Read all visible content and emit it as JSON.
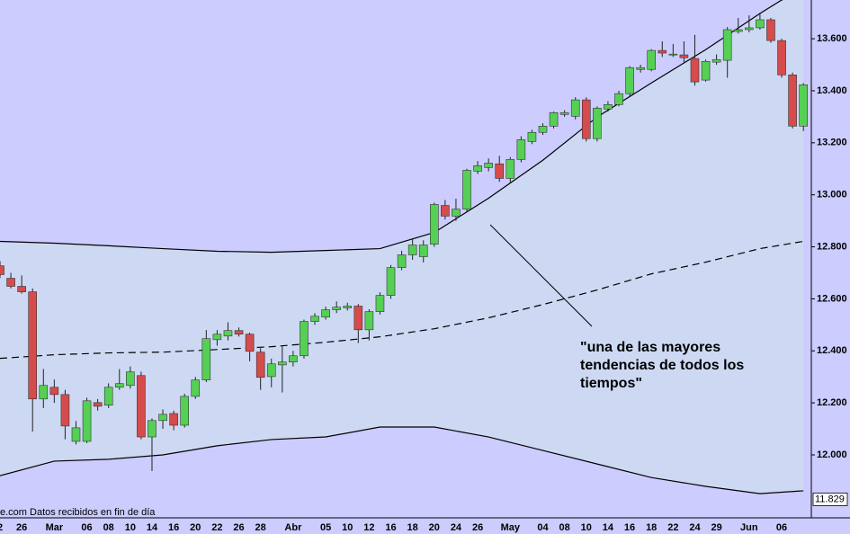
{
  "chart_data": {
    "type": "candlestick",
    "categories": [
      "2",
      null,
      "26",
      null,
      null,
      "Mar",
      null,
      null,
      "06",
      null,
      "08",
      null,
      "10",
      null,
      "14",
      null,
      "16",
      null,
      "20",
      null,
      "22",
      null,
      "26",
      null,
      "28",
      null,
      null,
      "Abr",
      null,
      null,
      "05",
      null,
      "10",
      null,
      "12",
      null,
      "16",
      null,
      "18",
      null,
      "20",
      null,
      "24",
      null,
      "26",
      null,
      null,
      "May",
      null,
      null,
      "04",
      null,
      "08",
      null,
      "10",
      null,
      "14",
      null,
      "16",
      null,
      "18",
      null,
      "22",
      null,
      "24",
      null,
      "29",
      null,
      null,
      "Jun",
      null,
      null,
      "06",
      null,
      null
    ],
    "open": [
      12.727,
      12.679,
      12.648,
      12.627,
      12.215,
      12.26,
      12.232,
      12.052,
      12.052,
      12.201,
      12.191,
      12.26,
      12.267,
      12.305,
      12.069,
      12.132,
      12.159,
      12.114,
      12.225,
      12.288,
      12.443,
      12.457,
      12.478,
      12.464,
      12.395,
      12.301,
      12.346,
      12.357,
      12.381,
      12.513,
      12.53,
      12.558,
      12.565,
      12.572,
      12.481,
      12.551,
      12.613,
      12.72,
      12.769,
      12.762,
      12.81,
      12.959,
      12.918,
      12.945,
      13.091,
      13.105,
      13.119,
      13.063,
      13.136,
      13.205,
      13.24,
      13.264,
      13.309,
      13.302,
      13.365,
      13.216,
      13.33,
      13.347,
      13.389,
      13.482,
      13.482,
      13.555,
      13.538,
      13.538,
      13.524,
      13.441,
      13.51,
      13.517,
      13.628,
      13.635,
      13.642,
      13.673,
      13.593,
      13.461,
      13.264
    ],
    "high": [
      12.745,
      12.7,
      12.69,
      12.64,
      12.33,
      12.29,
      12.25,
      12.13,
      12.22,
      12.215,
      12.275,
      12.33,
      12.34,
      12.32,
      12.14,
      12.175,
      12.17,
      12.235,
      12.3,
      12.48,
      12.48,
      12.51,
      12.49,
      12.47,
      12.41,
      12.37,
      12.42,
      12.4,
      12.52,
      12.545,
      12.57,
      12.59,
      12.585,
      12.58,
      12.56,
      12.625,
      12.73,
      12.785,
      12.83,
      12.825,
      12.97,
      12.98,
      12.985,
      13.1,
      13.13,
      13.14,
      13.15,
      13.145,
      13.225,
      13.25,
      13.275,
      13.32,
      13.325,
      13.375,
      13.375,
      13.34,
      13.36,
      13.4,
      13.495,
      13.5,
      13.56,
      13.59,
      13.58,
      13.59,
      13.615,
      13.52,
      13.54,
      13.645,
      13.68,
      13.69,
      13.7,
      13.68,
      13.6,
      13.47,
      13.43
    ],
    "low": [
      12.68,
      12.64,
      12.62,
      12.09,
      12.18,
      12.2,
      12.06,
      12.04,
      12.045,
      12.17,
      12.18,
      12.25,
      12.255,
      12.06,
      11.938,
      12.1,
      12.095,
      12.105,
      12.215,
      12.28,
      12.42,
      12.44,
      12.455,
      12.36,
      12.25,
      12.26,
      12.24,
      12.34,
      12.37,
      12.5,
      12.52,
      12.545,
      12.555,
      12.43,
      12.44,
      12.54,
      12.6,
      12.71,
      12.75,
      12.74,
      12.8,
      12.905,
      12.9,
      12.935,
      13.08,
      13.09,
      13.05,
      13.045,
      13.125,
      13.195,
      13.23,
      13.255,
      13.3,
      13.29,
      13.205,
      13.205,
      13.32,
      13.34,
      13.38,
      13.47,
      13.475,
      13.53,
      13.53,
      13.51,
      13.42,
      13.435,
      13.5,
      13.45,
      13.62,
      13.625,
      13.635,
      13.585,
      13.45,
      13.255,
      13.245
    ],
    "close": [
      12.693,
      12.648,
      12.627,
      12.215,
      12.267,
      12.232,
      12.111,
      12.104,
      12.208,
      12.187,
      12.26,
      12.274,
      12.319,
      12.069,
      12.132,
      12.156,
      12.114,
      12.225,
      12.288,
      12.447,
      12.464,
      12.478,
      12.464,
      12.398,
      12.298,
      12.35,
      12.357,
      12.381,
      12.513,
      12.533,
      12.558,
      12.568,
      12.572,
      12.481,
      12.551,
      12.613,
      12.72,
      12.769,
      12.807,
      12.807,
      12.963,
      12.918,
      12.945,
      13.094,
      13.112,
      13.122,
      13.063,
      13.136,
      13.212,
      13.24,
      13.264,
      13.316,
      13.316,
      13.365,
      13.216,
      13.333,
      13.347,
      13.389,
      13.489,
      13.489,
      13.555,
      13.545,
      13.541,
      13.527,
      13.434,
      13.513,
      13.52,
      13.635,
      13.635,
      13.642,
      13.673,
      13.593,
      13.461,
      13.264,
      13.423
    ],
    "up_color": "#55d055",
    "down_color": "#d64b4b",
    "overlays": [
      {
        "color": "#000000",
        "dash": false,
        "x": [
          0,
          5,
          10,
          15,
          20,
          25,
          30,
          35,
          40,
          45,
          50,
          55,
          60,
          65,
          70,
          72,
          74
        ],
        "values": [
          12.821,
          12.814,
          12.804,
          12.793,
          12.783,
          12.779,
          12.786,
          12.793,
          12.855,
          12.987,
          13.133,
          13.299,
          13.43,
          13.558,
          13.697,
          13.749,
          13.777
        ]
      },
      {
        "color": "#000000",
        "dash": true,
        "x": [
          0,
          5,
          10,
          15,
          20,
          25,
          30,
          35,
          40,
          45,
          50,
          55,
          60,
          65,
          70,
          74
        ],
        "values": [
          12.371,
          12.385,
          12.392,
          12.395,
          12.405,
          12.416,
          12.433,
          12.454,
          12.485,
          12.527,
          12.578,
          12.634,
          12.696,
          12.741,
          12.793,
          12.821
        ]
      },
      {
        "color": "#000000",
        "dash": false,
        "x": [
          0,
          5,
          10,
          15,
          20,
          25,
          30,
          35,
          40,
          45,
          50,
          55,
          60,
          65,
          70,
          74
        ],
        "values": [
          11.92,
          11.976,
          11.983,
          12.0,
          12.035,
          12.059,
          12.069,
          12.107,
          12.107,
          12.069,
          12.017,
          11.965,
          11.913,
          11.879,
          11.851,
          11.862
        ]
      }
    ],
    "band_color": "#cdd9f3",
    "background": "#ccccff",
    "ylim": [
      11.758,
      13.749
    ],
    "yticks": [
      {
        "value": 12.0,
        "label": "12.000"
      },
      {
        "value": 12.2,
        "label": "12.200"
      },
      {
        "value": 12.4,
        "label": "12.400"
      },
      {
        "value": 12.6,
        "label": "12.600"
      },
      {
        "value": 12.8,
        "label": "12.800"
      },
      {
        "value": 13.0,
        "label": "13.000"
      },
      {
        "value": 13.2,
        "label": "13.200"
      },
      {
        "value": 13.4,
        "label": "13.400"
      },
      {
        "value": 13.6,
        "label": "13.600"
      }
    ],
    "last_value": {
      "value": 11.829,
      "label": "11.829"
    },
    "annotation": [
      "\"una de las mayores",
      "tendencias de todos los",
      "tiempos\""
    ],
    "footer": "e.com  Datos recibidos en fin de día"
  }
}
